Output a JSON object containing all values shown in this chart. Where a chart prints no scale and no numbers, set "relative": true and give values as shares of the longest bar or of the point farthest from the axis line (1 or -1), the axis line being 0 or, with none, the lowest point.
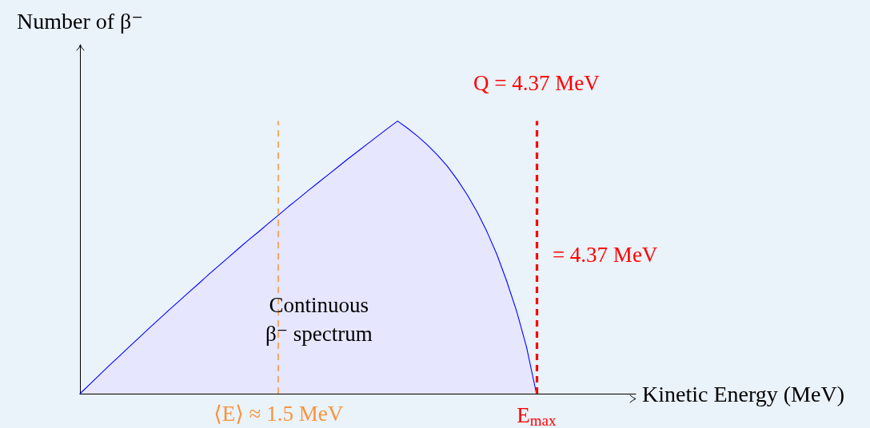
{
  "chart_data": {
    "type": "area",
    "xlabel": "Kinetic Energy (MeV)",
    "ylabel": "Number of β⁻",
    "relative": true,
    "categories": [
      null,
      null,
      null,
      null,
      null,
      null,
      null,
      null,
      null,
      null,
      null,
      null,
      null,
      null,
      null,
      null,
      null,
      null,
      null,
      null,
      "⟨E⟩ ≈ 1.5 MeV",
      null,
      null,
      null,
      null,
      null,
      null,
      null,
      null,
      null,
      null,
      null,
      null,
      null,
      null,
      null,
      null,
      null,
      null,
      null,
      null,
      null,
      null,
      null,
      null,
      null,
      "E$_{max}$",
      null,
      null,
      null,
      null,
      null,
      null,
      null,
      null,
      null,
      null
    ],
    "values": [
      0,
      0.035,
      0.07,
      0.105,
      0.139,
      0.173,
      0.207,
      0.241,
      0.274,
      0.308,
      0.34,
      0.373,
      0.405,
      0.438,
      0.47,
      0.501,
      0.533,
      0.564,
      0.594,
      0.625,
      0.655,
      0.686,
      0.715,
      0.745,
      0.774,
      0.803,
      0.832,
      0.861,
      0.889,
      0.917,
      0.945,
      0.973,
      1,
      0.974,
      0.945,
      0.913,
      0.876,
      0.835,
      0.786,
      0.731,
      0.668,
      0.595,
      0.512,
      0.413,
      0.303,
      0.171,
      0,
      null,
      null,
      null,
      null,
      null,
      null,
      null,
      null,
      null,
      null
    ],
    "color": "#0000ff",
    "tick_labels": "x",
    "ref_lines": [
      {
        "axis": "x",
        "value": "⟨E⟩ ≈ 1.5 MeV",
        "color": "#f7943a",
        "line_style": "dashed"
      },
      {
        "axis": "x",
        "value": "E$_{max}$",
        "label": "Q = 4.37 MeV",
        "color": "#ff0000",
        "line_style": "dashed"
      }
    ],
    "annotations": [
      "Continuous\nβ⁻ spectrum",
      {
        "text": "= 4.37 MeV",
        "x": "E$_{max}$",
        "y": 0.51
      }
    ]
  }
}
